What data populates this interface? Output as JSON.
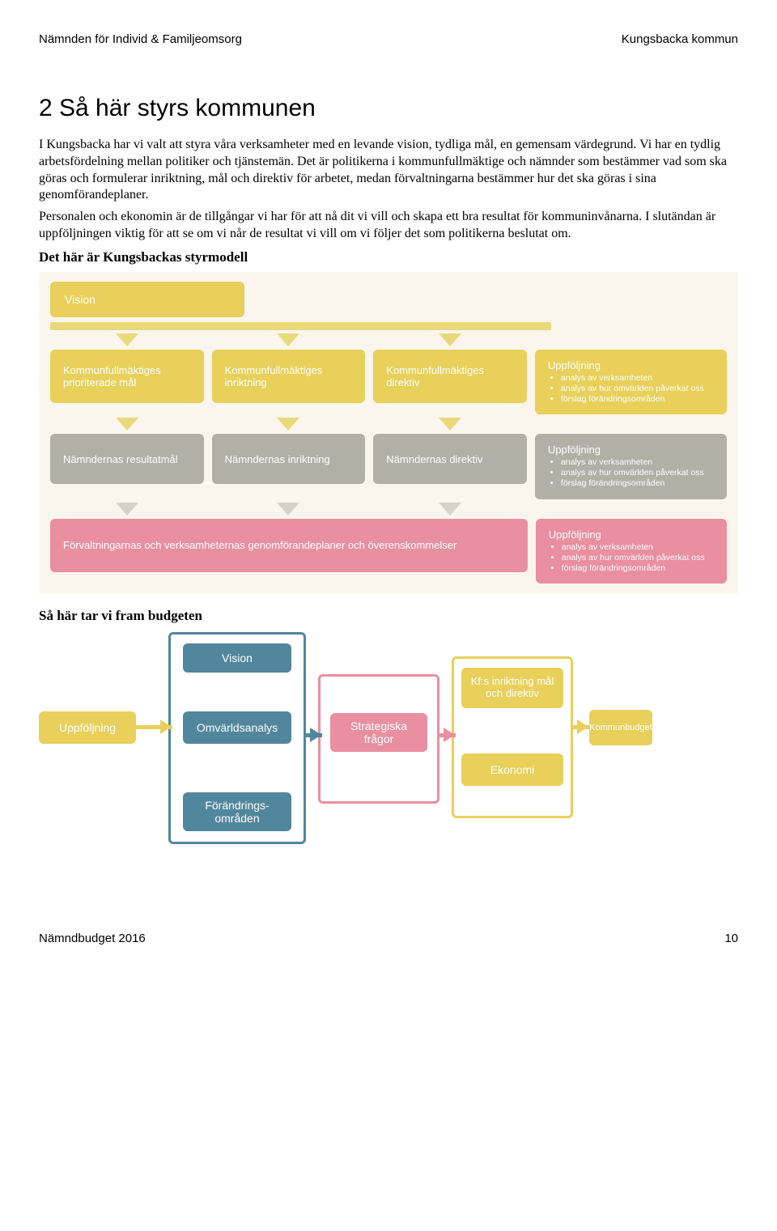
{
  "header": {
    "left": "Nämnden för Individ & Familjeomsorg",
    "right": "Kungsbacka kommun"
  },
  "title": "2 Så här styrs kommunen",
  "para1": "I Kungsbacka har vi valt att styra våra verksamheter med en levande vision, tydliga mål, en gemensam värdegrund. Vi har en tydlig arbetsfördelning mellan politiker och tjänstemän. Det är politikerna i kommunfullmäktige och nämnder som bestämmer vad som ska göras och formulerar inriktning, mål och direktiv för arbetet, medan förvaltningarna bestämmer hur det ska göras i sina genomförandeplaner.",
  "para2": "Personalen och ekonomin är de tillgångar vi har för att nå dit vi vill och skapa ett bra resultat för kommuninvånarna. I slutändan är uppföljningen viktig för att se om vi når de resultat vi vill om vi följer det som politikerna beslutat om.",
  "sub1": "Det här är Kungsbackas styrmodell",
  "sub2": "Så här tar vi fram budgeten",
  "colors": {
    "bg_cream": "#fbf6ed",
    "yellow": "#e8d05a",
    "grey": "#b2afa7",
    "grey_light": "#d6d3cb",
    "pink": "#e98fa0",
    "blue": "#51869d",
    "arrow_yellow": "#ead97b",
    "arrow_grey": "#d5d2ca",
    "arrow_pink": "#f0b2bd"
  },
  "diagram1": {
    "vision": "Vision",
    "row1": [
      {
        "t": "Kommunfullmäktiges prioriterade mål"
      },
      {
        "t": "Kommunfullmäktiges inriktning"
      },
      {
        "t": "Kommunfullmäktiges direktiv"
      }
    ],
    "row2": [
      {
        "t": "Nämndernas resultatmål"
      },
      {
        "t": "Nämndernas inriktning"
      },
      {
        "t": "Nämndernas direktiv"
      }
    ],
    "row3": {
      "t": "Förvaltningarnas och verksamheternas genomförandeplaner och överenskommelser"
    },
    "followup": {
      "title": "Uppföljning",
      "items": [
        "analys av verksamheten",
        "analys av hur omvärlden påverkat oss",
        "förslag förändringsområden"
      ]
    }
  },
  "diagram2": {
    "uppfoljning": "Uppföljning",
    "vision": "Vision",
    "omvarld": "Omvärldsanalys",
    "forandring": "Förändrings-\nområden",
    "strategiska": "Strategiska frågor",
    "kfs": "Kf:s inriktning mål och direktiv",
    "ekonomi": "Ekonomi",
    "kommunbudget": "Kommunbudget"
  },
  "footer": {
    "left": "Nämndbudget 2016",
    "page": "10"
  }
}
